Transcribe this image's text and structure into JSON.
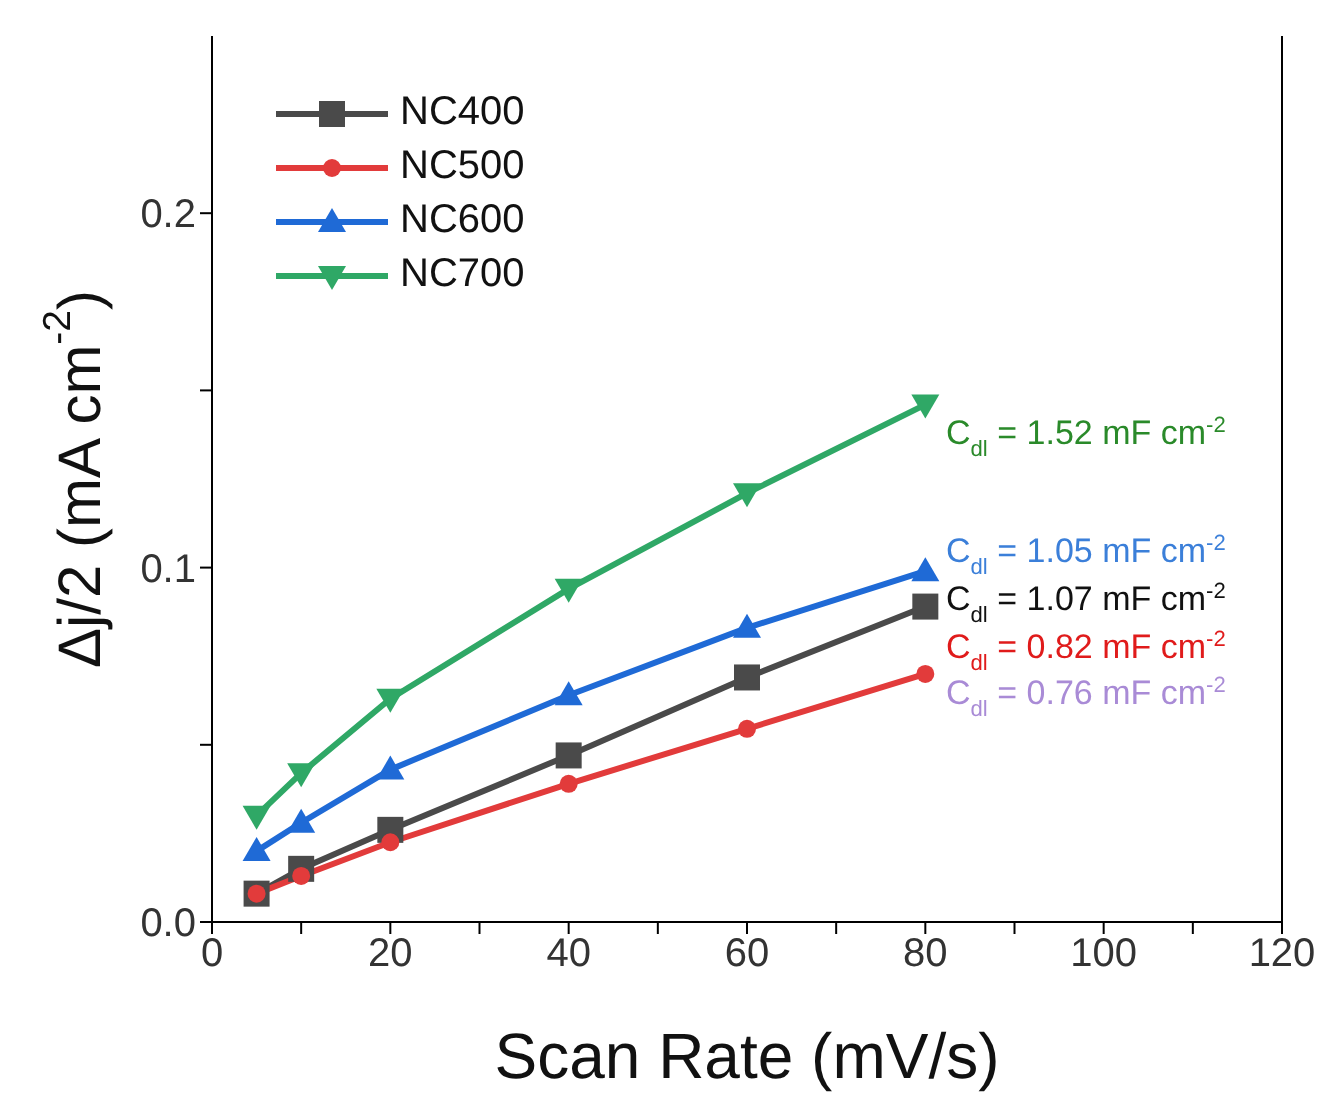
{
  "chart_data": {
    "type": "line",
    "xlabel": "Scan Rate (mV/s)",
    "ylabel": "Δj/2 (mA cm$^{-2}$)",
    "x": [
      5,
      10,
      20,
      40,
      60,
      80
    ],
    "series": [
      {
        "name": "NC400",
        "color": "#4a4a4a",
        "marker": "square",
        "values": [
          0.008,
          0.015,
          0.026,
          0.047,
          0.069,
          0.089
        ]
      },
      {
        "name": "NC500",
        "color": "#e23b3b",
        "marker": "circle",
        "values": [
          0.008,
          0.013,
          0.0225,
          0.039,
          0.0545,
          0.07
        ]
      },
      {
        "name": "NC600",
        "color": "#1f6ad6",
        "marker": "triangle",
        "values": [
          0.02,
          0.028,
          0.043,
          0.064,
          0.083,
          0.099
        ]
      },
      {
        "name": "NC700",
        "color": "#2fa866",
        "marker": "triangle-down",
        "values": [
          0.03,
          0.042,
          0.063,
          0.094,
          0.121,
          0.146
        ]
      }
    ],
    "annotations": [
      "C$_{dl}$ = 1.52 mF cm$^{-2}$",
      "C$_{dl}$ = 1.05 mF cm$^{-2}$",
      "C$_{dl}$ = 1.07 mF cm$^{-2}$",
      "C$_{dl}$ = 0.82 mF cm$^{-2}$",
      "C$_{dl}$ = 0.76 mF cm$^{-2}$"
    ],
    "xlim": [
      0,
      120
    ],
    "xticks": [
      0,
      {
        "value": 10,
        "label": null
      },
      20,
      {
        "value": 30,
        "label": null
      },
      40,
      {
        "value": 50,
        "label": null
      },
      60,
      {
        "value": 70,
        "label": null
      },
      80,
      {
        "value": 90,
        "label": null
      },
      100,
      {
        "value": 110,
        "label": null
      },
      120
    ],
    "ylim": [
      0,
      0.25
    ],
    "yticks": [
      {
        "value": 0,
        "label": "0.0"
      },
      {
        "value": 0.05,
        "label": null
      },
      0.1,
      {
        "value": 0.15,
        "label": null
      },
      0.2
    ],
    "legend": "top left",
    "grid": false,
    "line_style": "solid"
  }
}
